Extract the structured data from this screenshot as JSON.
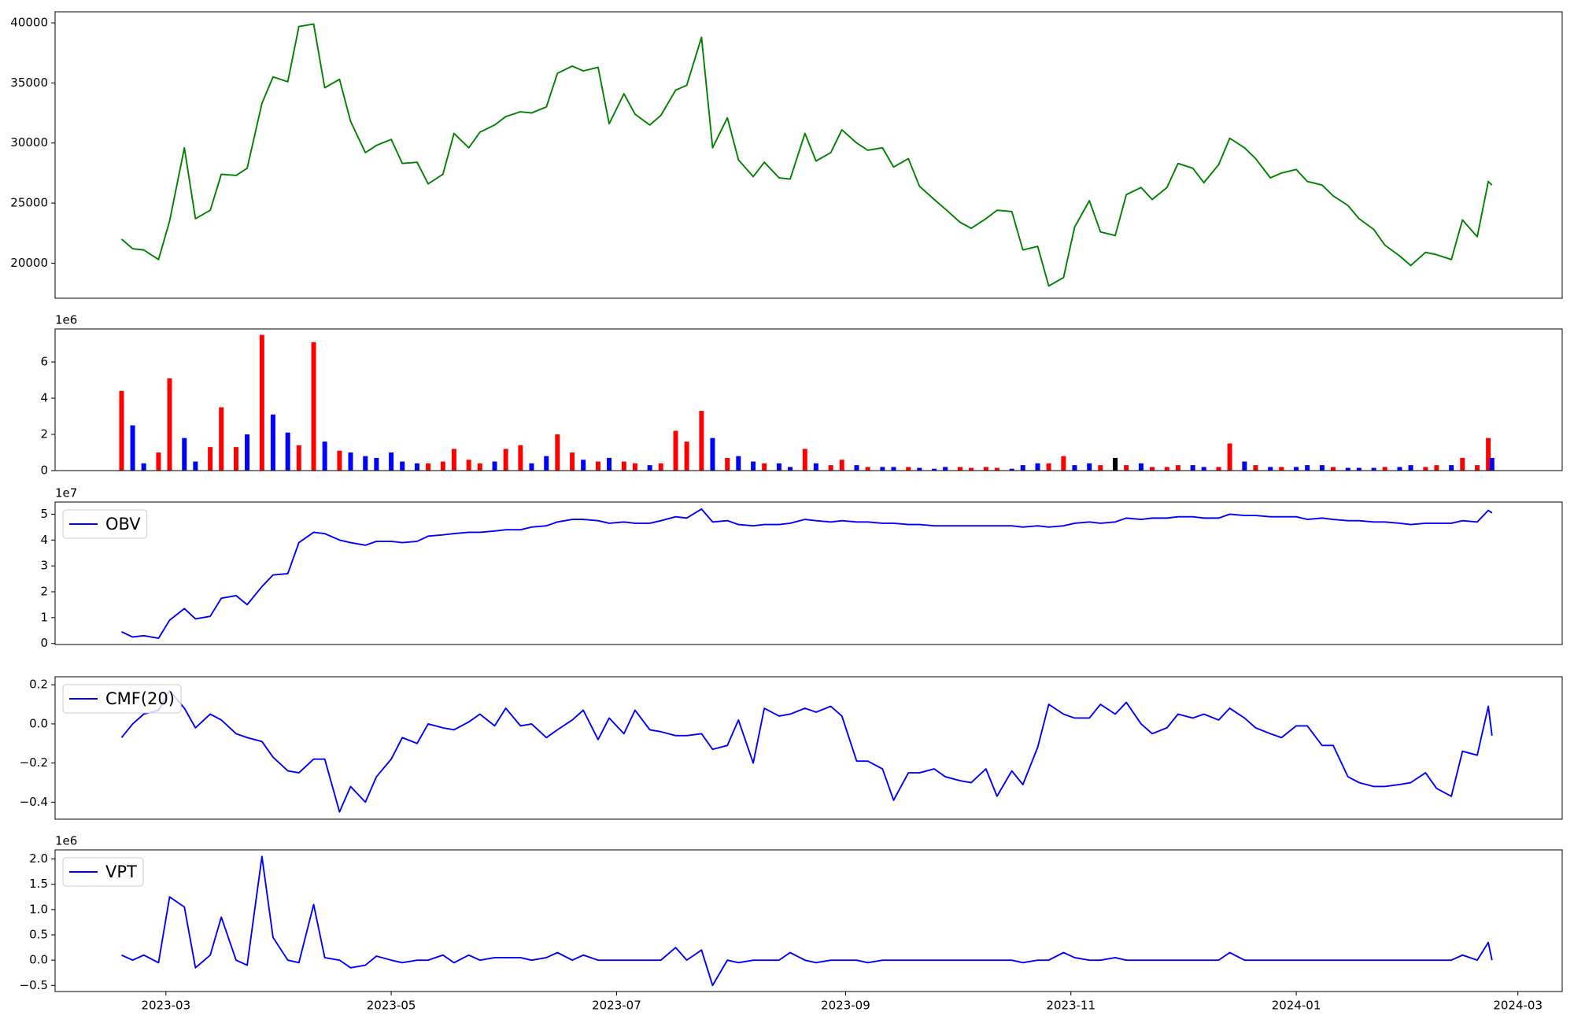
{
  "chart_data": {
    "x": [
      "2023-02-17",
      "2023-02-20",
      "2023-02-23",
      "2023-02-27",
      "2023-03-02",
      "2023-03-06",
      "2023-03-09",
      "2023-03-13",
      "2023-03-16",
      "2023-03-20",
      "2023-03-23",
      "2023-03-27",
      "2023-03-30",
      "2023-04-03",
      "2023-04-06",
      "2023-04-10",
      "2023-04-13",
      "2023-04-17",
      "2023-04-20",
      "2023-04-24",
      "2023-04-27",
      "2023-05-01",
      "2023-05-04",
      "2023-05-08",
      "2023-05-11",
      "2023-05-15",
      "2023-05-18",
      "2023-05-22",
      "2023-05-25",
      "2023-05-29",
      "2023-06-01",
      "2023-06-05",
      "2023-06-08",
      "2023-06-12",
      "2023-06-15",
      "2023-06-19",
      "2023-06-22",
      "2023-06-26",
      "2023-06-29",
      "2023-07-03",
      "2023-07-06",
      "2023-07-10",
      "2023-07-13",
      "2023-07-17",
      "2023-07-20",
      "2023-07-24",
      "2023-07-27",
      "2023-07-31",
      "2023-08-03",
      "2023-08-07",
      "2023-08-10",
      "2023-08-14",
      "2023-08-17",
      "2023-08-21",
      "2023-08-24",
      "2023-08-28",
      "2023-08-31",
      "2023-09-04",
      "2023-09-07",
      "2023-09-11",
      "2023-09-14",
      "2023-09-18",
      "2023-09-21",
      "2023-09-25",
      "2023-09-28",
      "2023-10-02",
      "2023-10-05",
      "2023-10-09",
      "2023-10-12",
      "2023-10-16",
      "2023-10-19",
      "2023-10-23",
      "2023-10-26",
      "2023-10-30",
      "2023-11-02",
      "2023-11-06",
      "2023-11-09",
      "2023-11-13",
      "2023-11-16",
      "2023-11-20",
      "2023-11-23",
      "2023-11-27",
      "2023-11-30",
      "2023-12-04",
      "2023-12-07",
      "2023-12-11",
      "2023-12-14",
      "2023-12-18",
      "2023-12-21",
      "2023-12-25",
      "2023-12-28",
      "2024-01-01",
      "2024-01-04",
      "2024-01-08",
      "2024-01-11",
      "2024-01-15",
      "2024-01-18",
      "2024-01-22",
      "2024-01-25",
      "2024-01-29",
      "2024-02-01",
      "2024-02-05",
      "2024-02-08",
      "2024-02-12",
      "2024-02-15",
      "2024-02-19",
      "2024-02-22",
      "2024-02-23"
    ],
    "xlim": [
      "2023-01-30",
      "2024-03-13"
    ],
    "xticks": [
      {
        "value": "2023-03-01",
        "label": "2023-03"
      },
      {
        "value": "2023-05-01",
        "label": "2023-05"
      },
      {
        "value": "2023-07-01",
        "label": "2023-07"
      },
      {
        "value": "2023-09-01",
        "label": "2023-09"
      },
      {
        "value": "2023-11-01",
        "label": "2023-11"
      },
      {
        "value": "2024-01-01",
        "label": "2024-01"
      },
      {
        "value": "2024-03-01",
        "label": "2024-03"
      }
    ],
    "panels": [
      {
        "type": "line",
        "ylim": [
          17080,
          40920
        ],
        "yticks": [
          20000,
          25000,
          30000,
          35000,
          40000
        ],
        "series": [
          {
            "color": "green",
            "values": [
              22000,
              21200,
              21100,
              20300,
              23500,
              29600,
              23700,
              24400,
              27400,
              27300,
              27900,
              33300,
              35500,
              35100,
              39700,
              39900,
              34600,
              35300,
              31800,
              29200,
              29800,
              30300,
              28300,
              28400,
              26600,
              27400,
              30800,
              29600,
              30900,
              31500,
              32200,
              32600,
              32500,
              33000,
              35800,
              36400,
              36000,
              36300,
              31600,
              34100,
              32400,
              31500,
              32300,
              34400,
              34800,
              38800,
              29600,
              32100,
              28600,
              27200,
              28400,
              27100,
              27000,
              30800,
              28500,
              29200,
              31100,
              30000,
              29400,
              29600,
              28000,
              28700,
              26400,
              25300,
              24500,
              23400,
              22900,
              23700,
              24400,
              24300,
              21100,
              21400,
              18100,
              18800,
              23000,
              25200,
              22600,
              22300,
              25700,
              26300,
              25300,
              26300,
              28300,
              27900,
              26700,
              28200,
              30400,
              29600,
              28700,
              27100,
              27500,
              27800,
              26800,
              26500,
              25600,
              24800,
              23700,
              22800,
              21500,
              20600,
              19800,
              20900,
              20700,
              20300,
              23600,
              22200,
              26800,
              26500
            ]
          }
        ]
      },
      {
        "type": "bar",
        "offset_text": "1e6",
        "ylim": [
          0,
          7830000
        ],
        "yticks": [
          0,
          {
            "value": 2000000,
            "label": "2"
          },
          {
            "value": 4000000,
            "label": "4"
          },
          {
            "value": 6000000,
            "label": "6"
          }
        ],
        "series": [
          {
            "values": [
              4400000,
              2500000,
              400000,
              1000000,
              5100000,
              1800000,
              500000,
              1300000,
              3500000,
              1300000,
              2000000,
              7500000,
              3100000,
              2100000,
              1400000,
              7100000,
              1600000,
              1100000,
              1000000,
              800000,
              700000,
              1000000,
              500000,
              400000,
              400000,
              500000,
              1200000,
              600000,
              400000,
              500000,
              1200000,
              1400000,
              400000,
              800000,
              2000000,
              1000000,
              600000,
              500000,
              700000,
              500000,
              400000,
              300000,
              400000,
              2200000,
              1600000,
              3300000,
              1800000,
              700000,
              800000,
              500000,
              400000,
              400000,
              200000,
              1200000,
              400000,
              300000,
              600000,
              300000,
              200000,
              200000,
              200000,
              200000,
              150000,
              100000,
              200000,
              200000,
              150000,
              200000,
              150000,
              100000,
              300000,
              400000,
              400000,
              800000,
              300000,
              400000,
              300000,
              700000,
              300000,
              400000,
              200000,
              200000,
              300000,
              300000,
              200000,
              200000,
              1500000,
              500000,
              300000,
              200000,
              200000,
              200000,
              300000,
              300000,
              200000,
              150000,
              150000,
              150000,
              200000,
              200000,
              300000,
              200000,
              300000,
              300000,
              700000,
              300000,
              1800000,
              700000
            ],
            "colors": [
              "red",
              "blue",
              "blue",
              "red",
              "red",
              "blue",
              "blue",
              "red",
              "red",
              "red",
              "blue",
              "red",
              "blue",
              "blue",
              "red",
              "red",
              "blue",
              "red",
              "blue",
              "blue",
              "blue",
              "blue",
              "blue",
              "blue",
              "red",
              "red",
              "red",
              "red",
              "red",
              "blue",
              "red",
              "red",
              "blue",
              "blue",
              "red",
              "red",
              "blue",
              "red",
              "blue",
              "red",
              "red",
              "blue",
              "red",
              "red",
              "red",
              "red",
              "blue",
              "red",
              "blue",
              "blue",
              "red",
              "blue",
              "blue",
              "red",
              "blue",
              "red",
              "red",
              "blue",
              "red",
              "blue",
              "blue",
              "red",
              "blue",
              "blue",
              "blue",
              "red",
              "red",
              "red",
              "red",
              "blue",
              "blue",
              "blue",
              "red",
              "red",
              "blue",
              "blue",
              "red",
              "black",
              "red",
              "blue",
              "red",
              "red",
              "red",
              "blue",
              "blue",
              "red",
              "red",
              "blue",
              "red",
              "blue",
              "red",
              "blue",
              "blue",
              "blue",
              "red",
              "blue",
              "blue",
              "blue",
              "red",
              "blue",
              "blue",
              "red",
              "red",
              "blue",
              "red",
              "red",
              "red",
              "blue"
            ]
          }
        ]
      },
      {
        "type": "line",
        "offset_text": "1e7",
        "legend": "upper left",
        "ylim": [
          -400000,
          54700000
        ],
        "yticks": [
          0,
          {
            "value": 10000000,
            "label": "1"
          },
          {
            "value": 20000000,
            "label": "2"
          },
          {
            "value": 30000000,
            "label": "3"
          },
          {
            "value": 40000000,
            "label": "4"
          },
          {
            "value": 50000000,
            "label": "5"
          }
        ],
        "series": [
          {
            "name": "OBV",
            "color": "blue",
            "values": [
              4500000,
              2500000,
              3000000,
              2000000,
              9000000,
              13500000,
              9500000,
              10500000,
              17500000,
              18500000,
              15000000,
              22000000,
              26500000,
              27000000,
              39000000,
              43000000,
              42500000,
              40000000,
              39000000,
              38000000,
              39500000,
              39500000,
              39000000,
              39500000,
              41500000,
              42000000,
              42500000,
              43000000,
              43000000,
              43500000,
              44000000,
              44000000,
              45000000,
              45500000,
              47000000,
              48000000,
              48000000,
              47500000,
              46500000,
              47000000,
              46500000,
              46500000,
              47500000,
              49000000,
              48500000,
              52000000,
              47000000,
              47500000,
              46000000,
              45500000,
              46000000,
              46000000,
              46500000,
              48000000,
              47500000,
              47000000,
              47500000,
              47000000,
              47000000,
              46500000,
              46500000,
              46000000,
              46000000,
              45500000,
              45500000,
              45500000,
              45500000,
              45500000,
              45500000,
              45500000,
              45000000,
              45500000,
              45000000,
              45500000,
              46500000,
              47000000,
              46500000,
              47000000,
              48500000,
              48000000,
              48500000,
              48500000,
              49000000,
              49000000,
              48500000,
              48500000,
              50000000,
              49500000,
              49500000,
              49000000,
              49000000,
              49000000,
              48000000,
              48500000,
              48000000,
              47500000,
              47500000,
              47000000,
              47000000,
              46500000,
              46000000,
              46500000,
              46500000,
              46500000,
              47500000,
              47000000,
              51500000,
              50500000
            ]
          }
        ]
      },
      {
        "type": "line",
        "legend": "upper left",
        "ylim": [
          -0.487,
          0.241
        ],
        "yticks": [
          {
            "value": -0.4,
            "label": "−0.4"
          },
          {
            "value": -0.2,
            "label": "−0.2"
          },
          {
            "value": 0,
            "label": "0.0"
          },
          0.2
        ],
        "series": [
          {
            "name": "CMF(20)",
            "color": "blue",
            "values": [
              -0.07,
              0.0,
              0.05,
              0.07,
              0.17,
              0.08,
              -0.02,
              0.05,
              0.02,
              -0.05,
              -0.07,
              -0.09,
              -0.17,
              -0.24,
              -0.25,
              -0.18,
              -0.18,
              -0.45,
              -0.32,
              -0.4,
              -0.27,
              -0.18,
              -0.07,
              -0.1,
              0.0,
              -0.02,
              -0.03,
              0.01,
              0.05,
              -0.01,
              0.08,
              -0.01,
              0.0,
              -0.07,
              -0.03,
              0.02,
              0.07,
              -0.08,
              0.03,
              -0.05,
              0.07,
              -0.03,
              -0.04,
              -0.06,
              -0.06,
              -0.05,
              -0.13,
              -0.11,
              0.02,
              -0.2,
              0.08,
              0.04,
              0.05,
              0.08,
              0.06,
              0.09,
              0.04,
              -0.19,
              -0.19,
              -0.23,
              -0.39,
              -0.25,
              -0.25,
              -0.23,
              -0.27,
              -0.29,
              -0.3,
              -0.23,
              -0.37,
              -0.24,
              -0.31,
              -0.12,
              0.1,
              0.05,
              0.03,
              0.03,
              0.1,
              0.05,
              0.11,
              0.0,
              -0.05,
              -0.02,
              0.05,
              0.03,
              0.05,
              0.02,
              0.08,
              0.03,
              -0.02,
              -0.05,
              -0.07,
              -0.01,
              -0.01,
              -0.11,
              -0.11,
              -0.27,
              -0.3,
              -0.32,
              -0.32,
              -0.31,
              -0.3,
              -0.25,
              -0.33,
              -0.37,
              -0.14,
              -0.16,
              0.09,
              -0.06
            ]
          }
        ]
      },
      {
        "type": "line",
        "offset_text": "1e6",
        "legend": "upper left",
        "ylim": [
          -620000,
          2180000
        ],
        "yticks": [
          {
            "value": -500000,
            "label": "−0.5"
          },
          {
            "value": 0,
            "label": "0.0"
          },
          {
            "value": 500000,
            "label": "0.5"
          },
          {
            "value": 1000000,
            "label": "1.0"
          },
          {
            "value": 1500000,
            "label": "1.5"
          },
          {
            "value": 2000000,
            "label": "2.0"
          }
        ],
        "series": [
          {
            "name": "VPT",
            "color": "blue",
            "values": [
              100000,
              0,
              100000,
              -50000,
              1250000,
              1050000,
              -150000,
              100000,
              850000,
              0,
              -100000,
              2050000,
              450000,
              0,
              -50000,
              1100000,
              50000,
              0,
              -150000,
              -100000,
              80000,
              0,
              -50000,
              0,
              0,
              100000,
              -50000,
              100000,
              0,
              50000,
              50000,
              50000,
              0,
              50000,
              150000,
              0,
              100000,
              0,
              0,
              0,
              0,
              0,
              0,
              250000,
              0,
              200000,
              -500000,
              0,
              -50000,
              0,
              0,
              0,
              150000,
              0,
              -50000,
              0,
              0,
              0,
              -50000,
              0,
              0,
              0,
              0,
              0,
              0,
              0,
              0,
              0,
              0,
              0,
              -50000,
              0,
              0,
              150000,
              50000,
              0,
              0,
              50000,
              0,
              0,
              0,
              0,
              0,
              0,
              0,
              0,
              150000,
              0,
              0,
              0,
              0,
              0,
              0,
              0,
              0,
              0,
              0,
              0,
              0,
              0,
              0,
              0,
              0,
              0,
              100000,
              0,
              350000,
              0
            ]
          }
        ]
      }
    ]
  }
}
